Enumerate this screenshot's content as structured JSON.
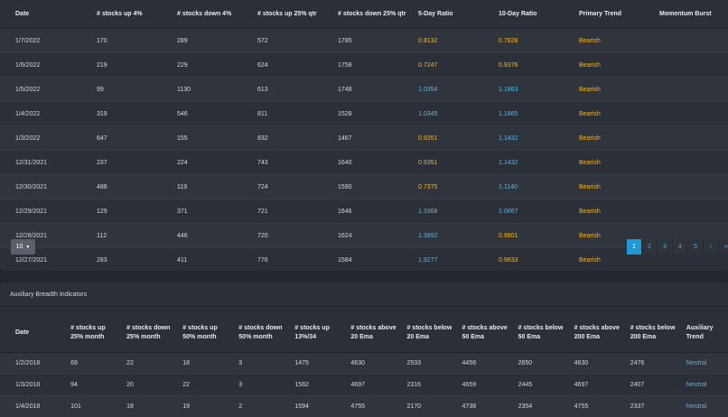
{
  "main_table": {
    "headers": [
      "Date",
      "# stocks up 4%",
      "# stocks down 4%",
      "# stocks up 25% qtr",
      "# stocks down 25% qtr",
      "5-Day Ratio",
      "10-Day Ratio",
      "Primary Trend",
      "Momentum Burst"
    ],
    "rows": [
      [
        "1/7/2022",
        "170",
        "289",
        "572",
        "1785",
        "0.8132",
        "0.7828",
        "Bearish",
        ""
      ],
      [
        "1/6/2022",
        "219",
        "229",
        "624",
        "1758",
        "0.7247",
        "0.9376",
        "Bearish",
        ""
      ],
      [
        "1/5/2022",
        "99",
        "1130",
        "613",
        "1748",
        "1.0354",
        "1.1863",
        "Bearish",
        ""
      ],
      [
        "1/4/2022",
        "319",
        "546",
        "811",
        "1528",
        "1.0345",
        "1.1865",
        "Bearish",
        ""
      ],
      [
        "1/3/2022",
        "647",
        "155",
        "832",
        "1467",
        "0.9351",
        "1.1432",
        "Bearish",
        ""
      ],
      [
        "12/31/2021",
        "237",
        "224",
        "743",
        "1640",
        "0.9351",
        "1.1432",
        "Bearish",
        ""
      ],
      [
        "12/30/2021",
        "488",
        "119",
        "724",
        "1590",
        "0.7375",
        "1.1140",
        "Bearish",
        ""
      ],
      [
        "12/29/2021",
        "129",
        "371",
        "721",
        "1646",
        "1.3368",
        "1.0667",
        "Bearish",
        ""
      ],
      [
        "12/28/2021",
        "112",
        "446",
        "720",
        "1624",
        "1.3892",
        "0.9801",
        "Bearish",
        ""
      ],
      [
        "12/27/2021",
        "283",
        "411",
        "776",
        "1584",
        "1.9277",
        "0.9833",
        "Bearish",
        ""
      ]
    ],
    "ratio_colors": [
      [
        "orange",
        "orange"
      ],
      [
        "orange",
        "orange"
      ],
      [
        "blue",
        "blue"
      ],
      [
        "blue",
        "blue"
      ],
      [
        "orange",
        "blue"
      ],
      [
        "orange",
        "blue"
      ],
      [
        "orange",
        "blue"
      ],
      [
        "blue",
        "blue"
      ],
      [
        "blue",
        "orange"
      ],
      [
        "blue",
        "orange"
      ]
    ]
  },
  "page_size": {
    "value": "10",
    "icon": "caret-down-icon"
  },
  "pagination": {
    "pages": [
      "1",
      "2",
      "3",
      "4",
      "5",
      "›",
      "»"
    ],
    "active": "1"
  },
  "aux": {
    "title": "Auxiliary Breadth Indicators",
    "headers": [
      [
        "Date",
        ""
      ],
      [
        "# stocks up",
        "25% month"
      ],
      [
        "# stocks down",
        "25% month"
      ],
      [
        "# stocks up",
        "50% month"
      ],
      [
        "# stocks down",
        "50% month"
      ],
      [
        "# stocks up",
        "13%/34"
      ],
      [
        "# stocks above",
        "20 Ema"
      ],
      [
        "# stocks below",
        "20 Ema"
      ],
      [
        "# stocks above",
        "50 Ema"
      ],
      [
        "# stocks below",
        "50 Ema"
      ],
      [
        "# stocks above",
        "200 Ema"
      ],
      [
        "# stocks below",
        "200 Ema"
      ],
      [
        "Auxiliary",
        "Trend"
      ]
    ],
    "rows": [
      [
        "1/2/2018",
        "69",
        "22",
        "18",
        "3",
        "1475",
        "4630",
        "2533",
        "4456",
        "2650",
        "4630",
        "2476",
        "Neutral"
      ],
      [
        "1/3/2018",
        "94",
        "20",
        "22",
        "3",
        "1582",
        "4697",
        "2316",
        "4659",
        "2445",
        "4697",
        "2407",
        "Neutral"
      ],
      [
        "1/4/2018",
        "101",
        "18",
        "19",
        "2",
        "1594",
        "4755",
        "2170",
        "4738",
        "2354",
        "4755",
        "2337",
        "Neutral"
      ]
    ]
  },
  "colors": {
    "orange": "#f0b428",
    "blue": "#5ab4e0",
    "accent": "#1e98d6",
    "background": "#22262d",
    "panel": "#2b3038"
  }
}
